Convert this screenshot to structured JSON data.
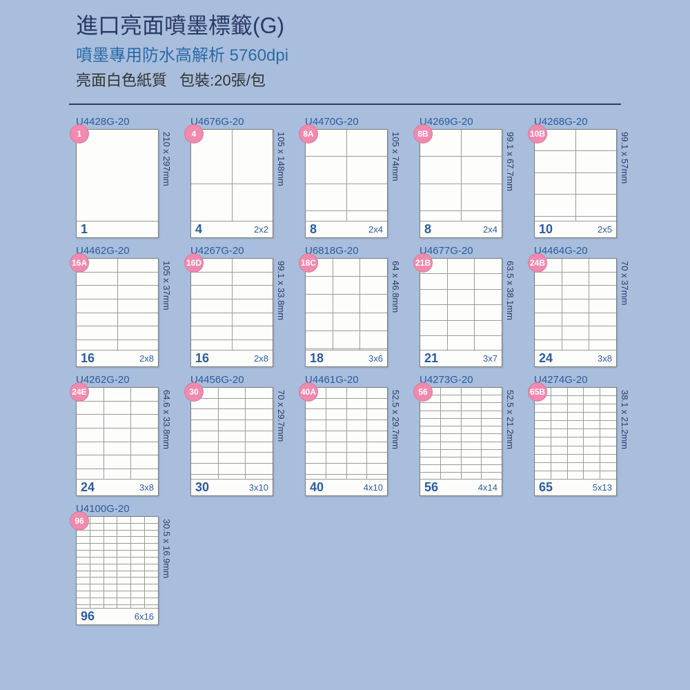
{
  "colors": {
    "page_bg": "#a8bedc",
    "title_main": "#2a3a66",
    "title_sub": "#2c6aa8",
    "title_meta": "#333333",
    "divider": "#2a3a66",
    "sku_text": "#2c5a9c",
    "badge_bg": "#f08aaf",
    "badge_text": "#ffffff",
    "footer_text": "#2c5a9c",
    "dims_text": "#2a3a66"
  },
  "header": {
    "title_main": "進口亮面噴墨標籤(G)",
    "title_sub": "噴墨專用防水高解析 5760dpi",
    "meta_material": "亮面白色紙質",
    "meta_pack": "包裝:20張/包"
  },
  "items": [
    {
      "sku": "U4428G-20",
      "badge": "1",
      "cols": 1,
      "rows": 1,
      "count": "1",
      "layout": "",
      "dims": "210 x 297mm"
    },
    {
      "sku": "U4676G-20",
      "badge": "4",
      "cols": 2,
      "rows": 2,
      "count": "4",
      "layout": "2x2",
      "dims": "105 x 148mm"
    },
    {
      "sku": "U4470G-20",
      "badge": "8A",
      "cols": 2,
      "rows": 4,
      "count": "8",
      "layout": "2x4",
      "dims": "105 x 74mm"
    },
    {
      "sku": "U4269G-20",
      "badge": "8B",
      "cols": 2,
      "rows": 4,
      "count": "8",
      "layout": "2x4",
      "dims": "99.1 x 67.7mm"
    },
    {
      "sku": "U4268G-20",
      "badge": "10B",
      "cols": 2,
      "rows": 5,
      "count": "10",
      "layout": "2x5",
      "dims": "99.1 x 57mm"
    },
    {
      "sku": "U4462G-20",
      "badge": "16A",
      "cols": 2,
      "rows": 8,
      "count": "16",
      "layout": "2x8",
      "dims": "105 x 37mm"
    },
    {
      "sku": "U4267G-20",
      "badge": "16D",
      "cols": 2,
      "rows": 8,
      "count": "16",
      "layout": "2x8",
      "dims": "99.1 x 33.8mm"
    },
    {
      "sku": "U6818G-20",
      "badge": "18C",
      "cols": 3,
      "rows": 6,
      "count": "18",
      "layout": "3x6",
      "dims": "64 x 46.8mm"
    },
    {
      "sku": "U4677G-20",
      "badge": "21B",
      "cols": 3,
      "rows": 7,
      "count": "21",
      "layout": "3x7",
      "dims": "63.5 x 38.1mm"
    },
    {
      "sku": "U4464G-20",
      "badge": "24B",
      "cols": 3,
      "rows": 8,
      "count": "24",
      "layout": "3x8",
      "dims": "70 x 37mm"
    },
    {
      "sku": "U4262G-20",
      "badge": "24E",
      "cols": 3,
      "rows": 8,
      "count": "24",
      "layout": "3x8",
      "dims": "64.6 x 33.8mm"
    },
    {
      "sku": "U4456G-20",
      "badge": "30",
      "cols": 3,
      "rows": 10,
      "count": "30",
      "layout": "3x10",
      "dims": "70 x 29.7mm"
    },
    {
      "sku": "U4461G-20",
      "badge": "40A",
      "cols": 4,
      "rows": 10,
      "count": "40",
      "layout": "4x10",
      "dims": "52.5 x 29.7mm"
    },
    {
      "sku": "U4273G-20",
      "badge": "56",
      "cols": 4,
      "rows": 14,
      "count": "56",
      "layout": "4x14",
      "dims": "52.5 x 21.2mm"
    },
    {
      "sku": "U4274G-20",
      "badge": "65B",
      "cols": 5,
      "rows": 13,
      "count": "65",
      "layout": "5x13",
      "dims": "38.1 x 21.2mm"
    },
    {
      "sku": "U4100G-20",
      "badge": "96",
      "cols": 6,
      "rows": 16,
      "count": "96",
      "layout": "6x16",
      "dims": "30.5 x 16.9mm"
    }
  ]
}
